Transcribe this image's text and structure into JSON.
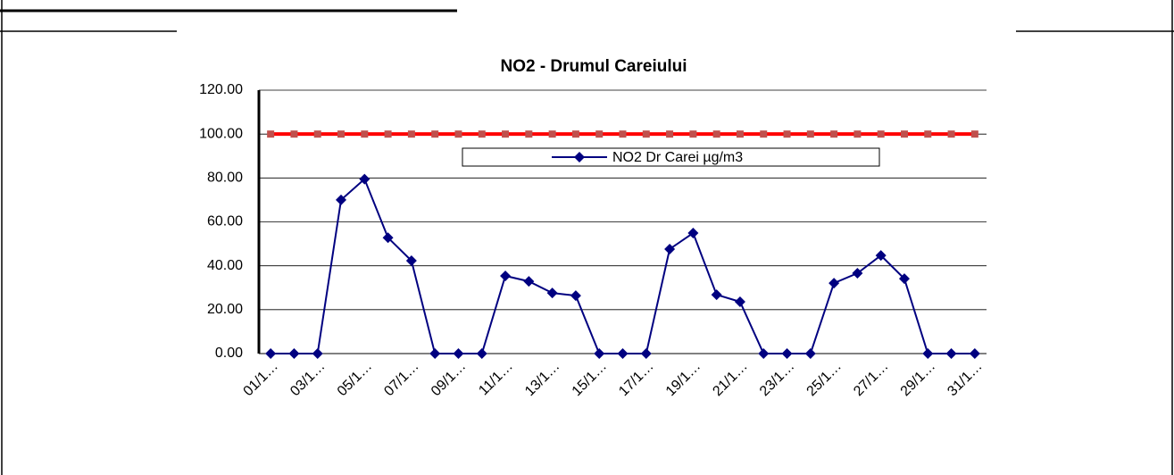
{
  "chart_data": {
    "type": "line",
    "title": "NO2 - Drumul Careiului",
    "categories": [
      "01/1…",
      null,
      "03/1…",
      null,
      "05/1…",
      null,
      "07/1…",
      null,
      "09/1…",
      null,
      "11/1…",
      null,
      "13/1…",
      null,
      "15/1…",
      null,
      "17/1…",
      null,
      "19/1…",
      null,
      "21/1…",
      null,
      "23/1…",
      null,
      "25/1…",
      null,
      "27/1…",
      null,
      "29/1…",
      null,
      "31/1…"
    ],
    "series": [
      {
        "name": "NO2 Dr Carei  µg/m3",
        "color": "#000080",
        "marker": "diamond",
        "values": [
          0,
          0,
          0,
          70,
          79.5,
          52.8,
          42.3,
          0,
          0,
          0,
          35.4,
          32.9,
          27.6,
          26.4,
          0,
          0,
          0,
          47.6,
          54.9,
          26.8,
          23.6,
          0,
          0,
          0,
          32.1,
          36.6,
          44.7,
          34.1,
          0,
          0,
          0
        ]
      },
      {
        "color": "#ff0000",
        "marker_color": "#c0504d",
        "marker": "square",
        "values": [
          100,
          100,
          100,
          100,
          100,
          100,
          100,
          100,
          100,
          100,
          100,
          100,
          100,
          100,
          100,
          100,
          100,
          100,
          100,
          100,
          100,
          100,
          100,
          100,
          100,
          100,
          100,
          100,
          100,
          100,
          100
        ]
      }
    ],
    "ylim": [
      0,
      120
    ],
    "yticks": [
      {
        "value": 0,
        "label": "0.00"
      },
      {
        "value": 20,
        "label": "20.00"
      },
      {
        "value": 40,
        "label": "40.00"
      },
      {
        "value": 60,
        "label": "60.00"
      },
      {
        "value": 80,
        "label": "80.00"
      },
      {
        "value": 100,
        "label": "100.00"
      },
      {
        "value": 120,
        "label": "120.00"
      }
    ],
    "grid": true,
    "legend": "top"
  }
}
